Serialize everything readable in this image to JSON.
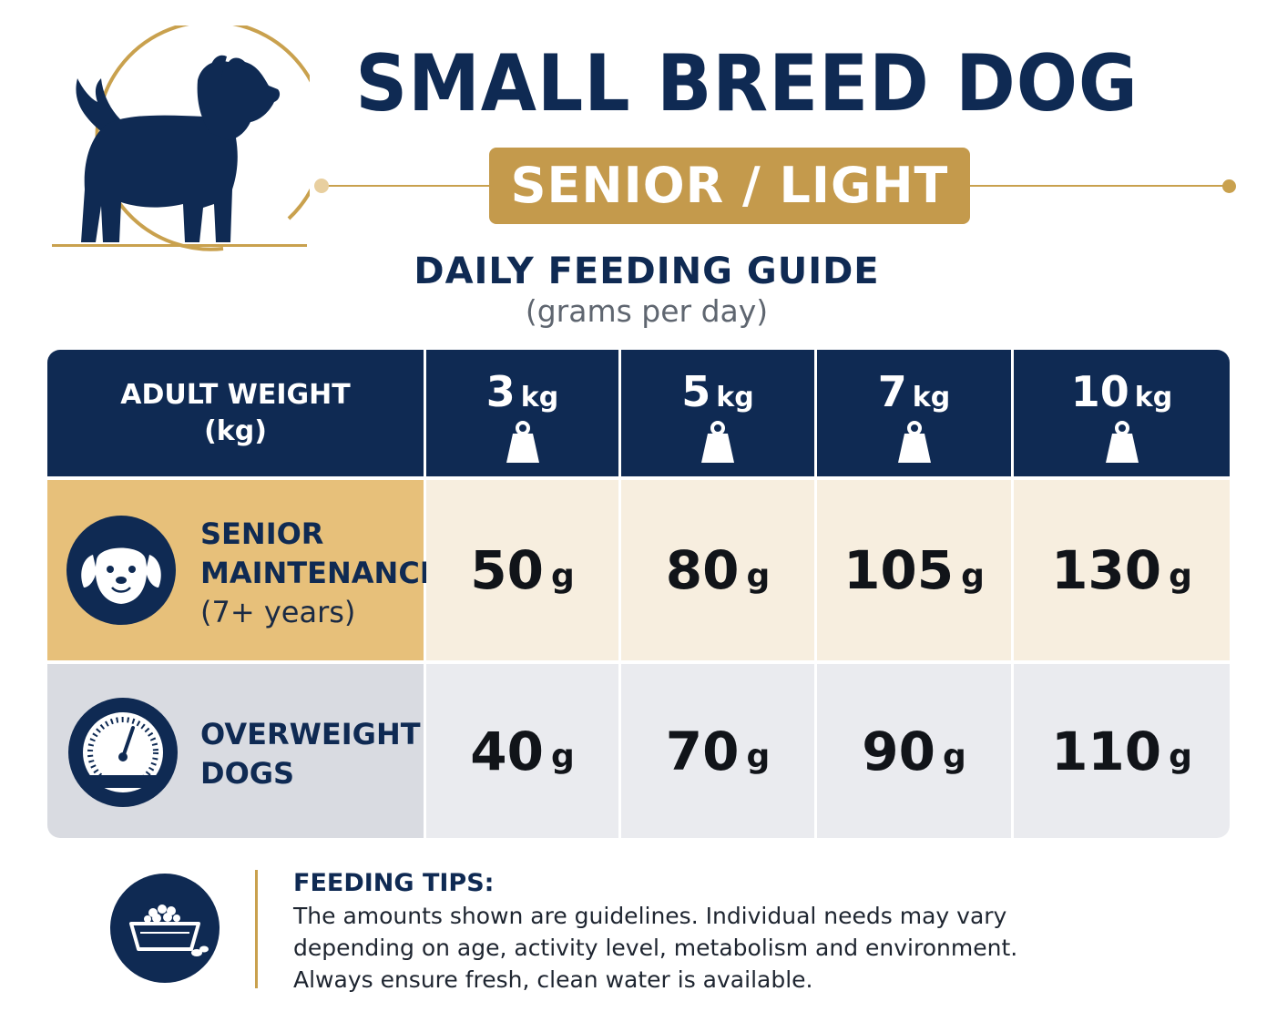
{
  "header": {
    "title": "SMALL BREED DOG",
    "badge": "SENIOR / LIGHT",
    "guide_title": "DAILY FEEDING GUIDE",
    "guide_subtitle": "(grams per day)",
    "logo_icon": "dog-silhouette-icon"
  },
  "table": {
    "header_label_line1": "ADULT WEIGHT",
    "header_label_line2": "(kg)",
    "weights": [
      {
        "value": "3",
        "unit": "kg",
        "icon": "weight-icon"
      },
      {
        "value": "5",
        "unit": "kg",
        "icon": "weight-icon"
      },
      {
        "value": "7",
        "unit": "kg",
        "icon": "weight-icon"
      },
      {
        "value": "10",
        "unit": "kg",
        "icon": "weight-icon"
      }
    ],
    "rows": [
      {
        "icon": "puppy-face-icon",
        "label_line1": "SENIOR",
        "label_line2": "MAINTENANCE",
        "label_line3": "(7+ years)",
        "values": [
          {
            "amount": "50",
            "unit": "g"
          },
          {
            "amount": "80",
            "unit": "g"
          },
          {
            "amount": "105",
            "unit": "g"
          },
          {
            "amount": "130",
            "unit": "g"
          }
        ]
      },
      {
        "icon": "scale-gauge-icon",
        "label_line1": "OVERWEIGHT",
        "label_line2": "DOGS",
        "values": [
          {
            "amount": "40",
            "unit": "g"
          },
          {
            "amount": "70",
            "unit": "g"
          },
          {
            "amount": "90",
            "unit": "g"
          },
          {
            "amount": "110",
            "unit": "g"
          }
        ]
      }
    ]
  },
  "tips": {
    "icon": "food-bowl-icon",
    "title": "FEEDING TIPS:",
    "body": "The amounts shown are guidelines. Individual needs may vary depending on age, activity level, metabolism and environment. Always ensure fresh, clean water is available."
  },
  "colors": {
    "navy": "#0f2a53",
    "gold": "#c49a4c",
    "gold_light": "#e7c07a",
    "cream": "#f7eedf",
    "grey": "#d9dbe1",
    "grey_light": "#eaebef"
  }
}
